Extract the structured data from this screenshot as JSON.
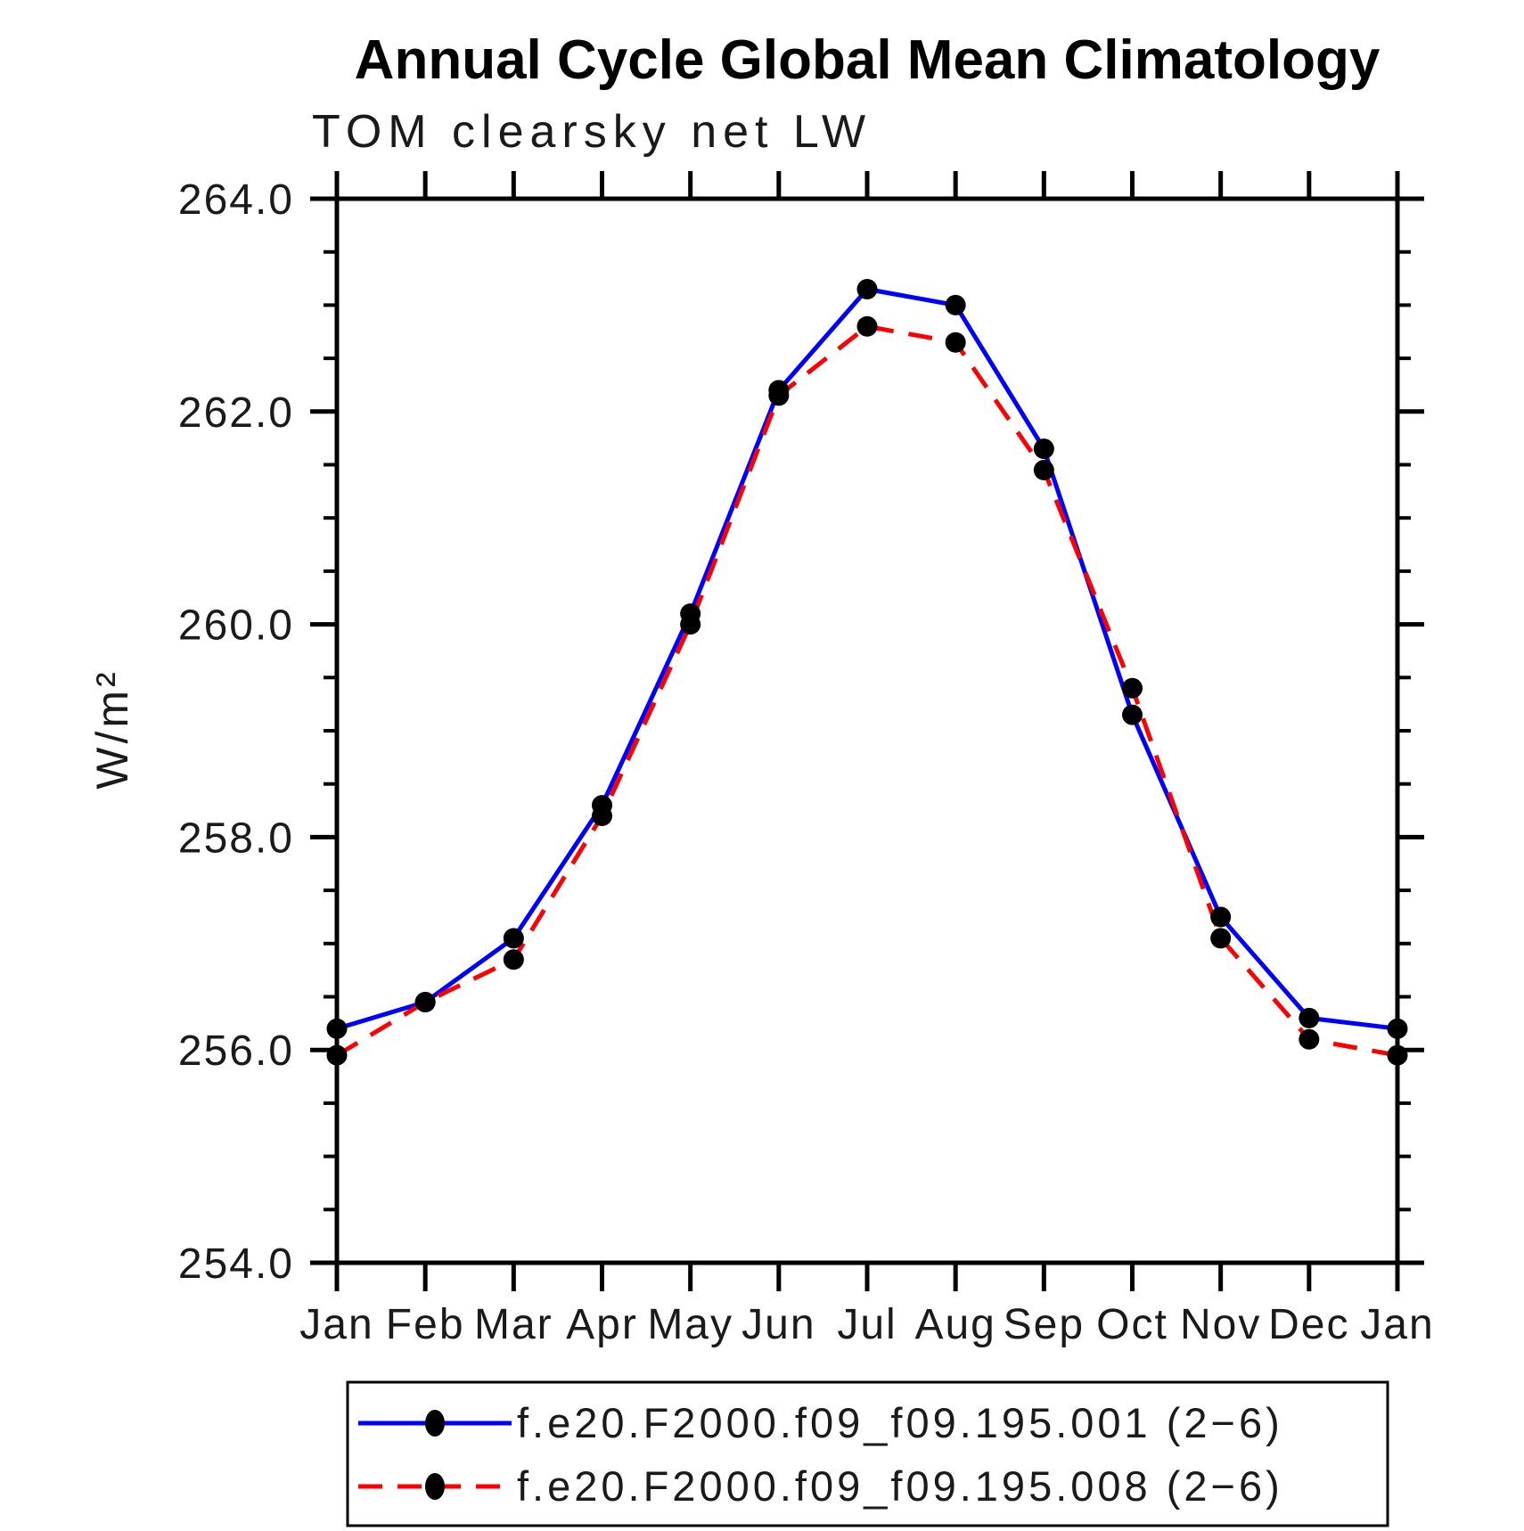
{
  "chart": {
    "title": "Annual Cycle Global Mean Climatology",
    "subtitle": "TOM clearsky net LW",
    "ylabel": "W/m²"
  },
  "legend": {
    "entries": [
      {
        "label": "f.e20.F2000.f09_f09.195.001 (2−6)",
        "color": "#0000ff",
        "line_style": "solid",
        "marker": "filled-circle"
      },
      {
        "label": "f.e20.F2000.f09_f09.195.008 (2−6)",
        "color": "#ff0000",
        "line_style": "dashed",
        "marker": "filled-circle"
      }
    ]
  },
  "chart_data": {
    "type": "line",
    "title": "Annual Cycle Global Mean Climatology",
    "subtitle": "TOM clearsky net LW",
    "xlabel": "",
    "ylabel": "W/m²",
    "categories": [
      "Jan",
      "Feb",
      "Mar",
      "Apr",
      "May",
      "Jun",
      "Jul",
      "Aug",
      "Sep",
      "Oct",
      "Nov",
      "Dec",
      "Jan"
    ],
    "series": [
      {
        "name": "f.e20.F2000.f09_f09.195.001 (2−6)",
        "color": "#0000ff",
        "line_style": "solid",
        "marker": "filled-circle",
        "marker_color": "#000000",
        "values": [
          256.2,
          256.45,
          257.05,
          258.3,
          260.1,
          262.2,
          263.15,
          263.0,
          261.65,
          259.15,
          257.25,
          256.3,
          256.2
        ]
      },
      {
        "name": "f.e20.F2000.f09_f09.195.008 (2−6)",
        "color": "#ff0000",
        "line_style": "dashed",
        "marker": "filled-circle",
        "marker_color": "#000000",
        "values": [
          255.95,
          256.45,
          256.85,
          258.2,
          260.0,
          262.15,
          262.8,
          262.65,
          261.45,
          259.4,
          257.05,
          256.1,
          255.95
        ]
      }
    ],
    "ylim": [
      254.0,
      264.0
    ],
    "y_major_tick_interval": 2.0,
    "y_minor_tick_interval": 0.5,
    "y_tick_labels": [
      "254.0",
      "256.0",
      "258.0",
      "260.0",
      "262.0",
      "264.0"
    ],
    "grid": false,
    "legend_position": "bottom"
  }
}
